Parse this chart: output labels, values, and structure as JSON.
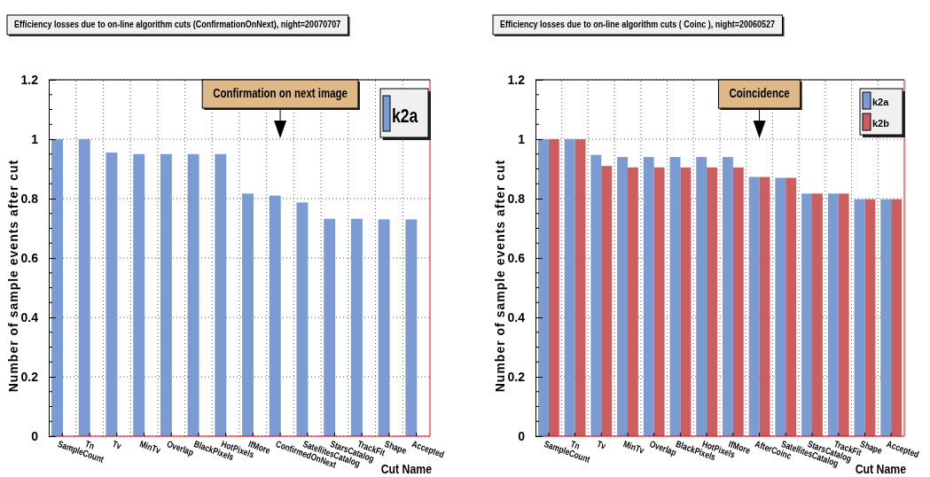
{
  "chart_data": [
    {
      "type": "bar",
      "title": "Efficiency losses due to on-line algorithm cuts (ConfirmationOnNext), night=20070707",
      "xlabel": "Cut Name",
      "ylabel": "Number of sample events after cut",
      "categories": [
        "SampleCount",
        "Tn",
        "Tv",
        "MinTv",
        "Overlap",
        "BlackPixels",
        "HotPixels",
        "IfMore",
        "ConfirmedOnNext",
        "SatellitesCatalog",
        "StarsCatalog",
        "TrackFit",
        "Shape",
        "Accepted"
      ],
      "series": [
        {
          "name": "k2a",
          "color": "#7b9bd3",
          "values": [
            1,
            1,
            0.955,
            0.95,
            0.95,
            0.95,
            0.95,
            0.817,
            0.81,
            0.787,
            0.732,
            0.732,
            0.73,
            0.73
          ]
        }
      ],
      "ylim": [
        0,
        1.2
      ],
      "yticks": [
        0,
        0.2,
        0.4,
        0.6,
        0.8,
        1,
        1.2
      ],
      "grid": true,
      "legend": "top right",
      "annotations": [
        "Confirmation on next image"
      ]
    },
    {
      "type": "bar",
      "title": "Efficiency losses due to on-line algorithm cuts ( Coinc ), night=20060527",
      "xlabel": "Cut Name",
      "ylabel": "Number of sample events after cut",
      "categories": [
        "SampleCount",
        "Tn",
        "Tv",
        "MinTv",
        "Overlap",
        "BlackPixels",
        "HotPixels",
        "IfMore",
        "AfterCoinc",
        "SatellitesCatalog",
        "StarsCatalog",
        "TrackFit",
        "Shape",
        "Accepted"
      ],
      "series": [
        {
          "name": "k2a",
          "color": "#7b9bd3",
          "values": [
            1,
            1,
            0.947,
            0.94,
            0.94,
            0.94,
            0.94,
            0.94,
            0.873,
            0.87,
            0.817,
            0.817,
            0.798,
            0.798
          ]
        },
        {
          "name": "k2b",
          "color": "#cd5e60",
          "values": [
            1,
            1,
            0.91,
            0.905,
            0.905,
            0.905,
            0.905,
            0.905,
            0.873,
            0.87,
            0.817,
            0.817,
            0.798,
            0.798
          ]
        }
      ],
      "ylim": [
        0,
        1.2
      ],
      "yticks": [
        0,
        0.2,
        0.4,
        0.6,
        0.8,
        1,
        1.2
      ],
      "grid": true,
      "legend": "top right",
      "annotations": [
        "Coincidence"
      ]
    }
  ]
}
